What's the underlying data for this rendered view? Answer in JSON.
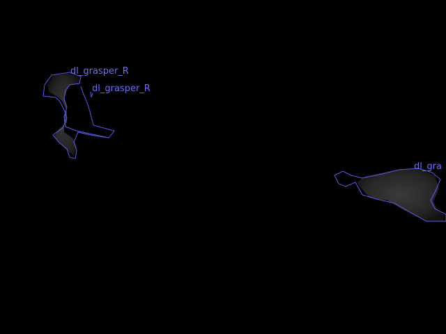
{
  "annotations": [
    {
      "label": "dl_grasper_R",
      "outline_color": "#5a5af0"
    },
    {
      "label": "dl_grasper_R",
      "outline_color": "#5a5af0"
    },
    {
      "label": "dl_gra",
      "outline_color": "#5a5af0"
    }
  ],
  "colors": {
    "background": "#000000",
    "label_text": "#6e6ef5",
    "mask_fill": "#2a2a2a"
  }
}
